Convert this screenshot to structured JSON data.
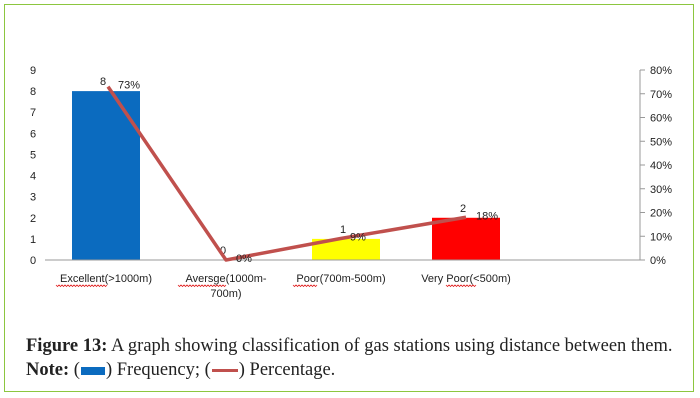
{
  "chart_data": {
    "type": "bar+line",
    "categories": [
      [
        "Excellent(>1000m)"
      ],
      [
        "Aversge(1000m-",
        "700m)"
      ],
      [
        "Poor(700m-500m)"
      ],
      [
        "Very Poor(<500m)"
      ]
    ],
    "series": [
      {
        "type": "bar",
        "axis": "left",
        "values": [
          8,
          0,
          1,
          2
        ],
        "colors": [
          "#0b6bbf",
          "#0b6bbf",
          "#ffff00",
          "#ff0000"
        ],
        "labels": [
          "8",
          "0",
          "1",
          "2"
        ]
      },
      {
        "type": "line",
        "axis": "right",
        "values": [
          73,
          0,
          9,
          18
        ],
        "color": "#c0504d",
        "labels": [
          "73%",
          "0%",
          "9%",
          "18%"
        ]
      }
    ],
    "y_left": {
      "min": 0,
      "max": 9,
      "ticks": [
        "0",
        "1",
        "2",
        "3",
        "4",
        "5",
        "6",
        "7",
        "8",
        "9"
      ]
    },
    "y_right": {
      "min": 0,
      "max": 80,
      "ticks": [
        "0%",
        "10%",
        "20%",
        "30%",
        "40%",
        "50%",
        "60%",
        "70%",
        "80%"
      ]
    },
    "grid": false
  },
  "caption": {
    "label": "Figure 13:",
    "text": " A graph showing classification of gas stations using distance between them. ",
    "note_label": "Note:",
    "open1": " (",
    "frequency": ") Frequency; (",
    "percentage": ") Percentage.",
    "bar_color": "#0b6bbf",
    "line_color": "#c0504d"
  }
}
